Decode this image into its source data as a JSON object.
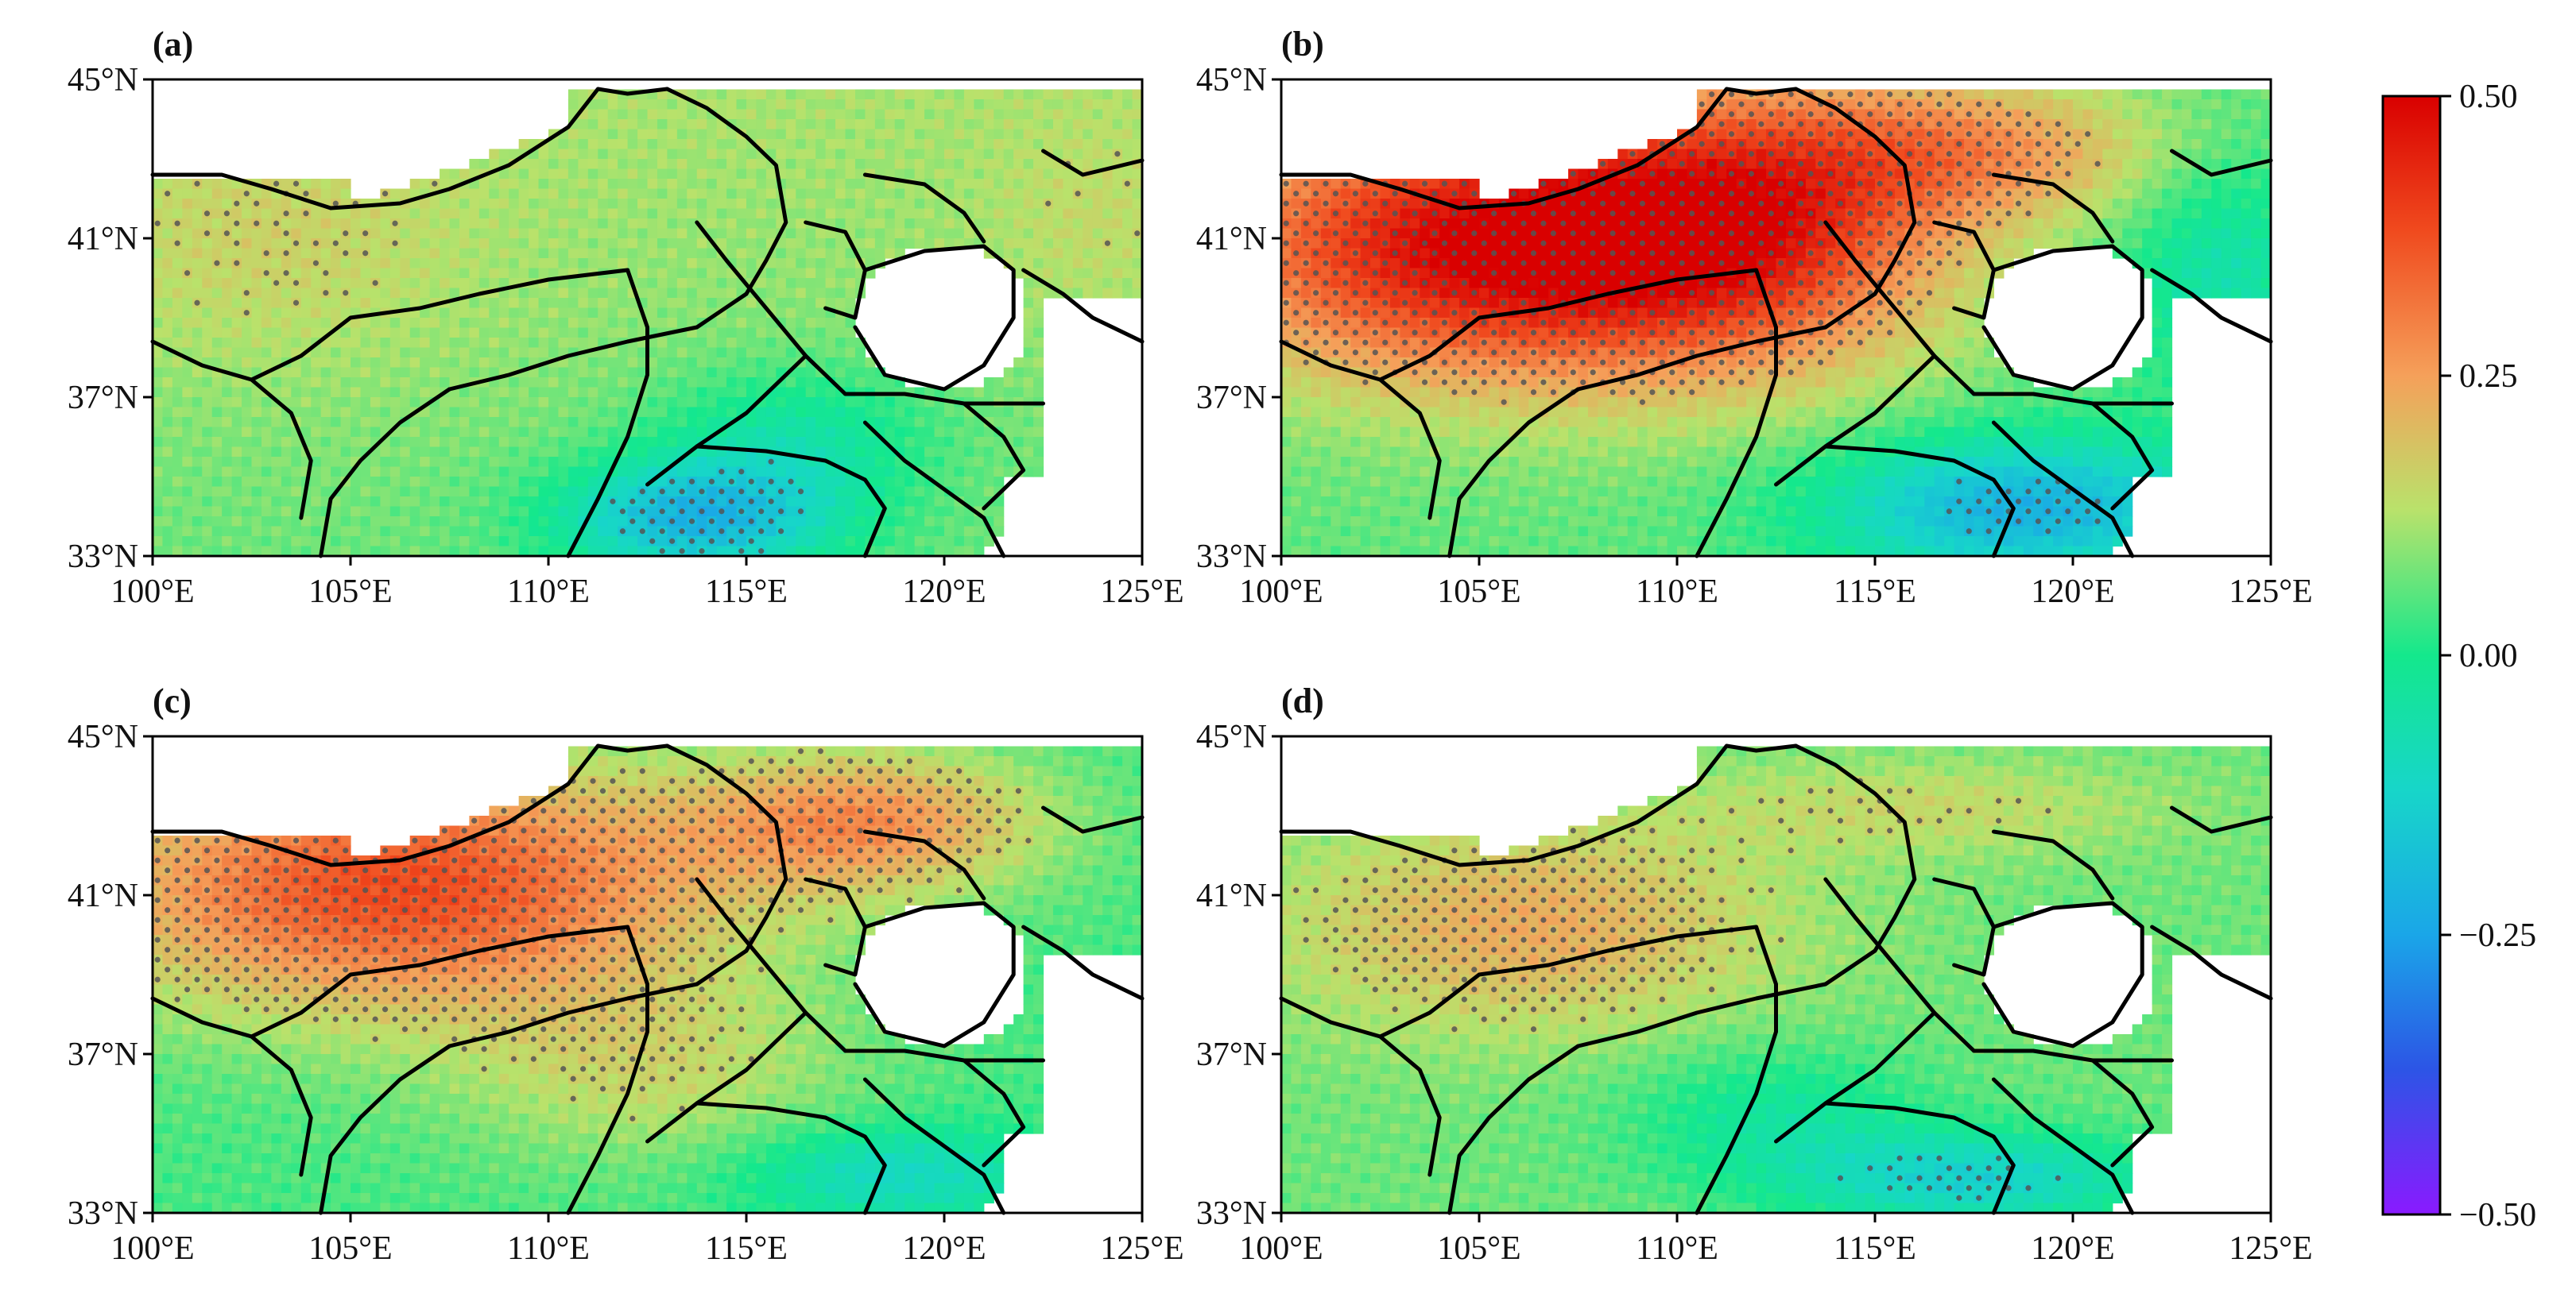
{
  "panels": [
    {
      "id": "a",
      "label": "(a)",
      "pattern": "a"
    },
    {
      "id": "b",
      "label": "(b)",
      "pattern": "b"
    },
    {
      "id": "c",
      "label": "(c)",
      "pattern": "c"
    },
    {
      "id": "d",
      "label": "(d)",
      "pattern": "d"
    }
  ],
  "axes": {
    "x_ticks": [
      "100°E",
      "105°E",
      "110°E",
      "115°E",
      "120°E",
      "125°E"
    ],
    "y_ticks": [
      "45°N",
      "41°N",
      "37°N",
      "33°N"
    ],
    "lon_range": [
      100,
      125
    ],
    "lat_range": [
      33,
      45
    ]
  },
  "colorbar": {
    "ticks": [
      "0.50",
      "0.25",
      "0.00",
      "−0.25",
      "−0.50"
    ],
    "range": [
      -0.5,
      0.5
    ]
  },
  "colors": {
    "high": "#d81a10",
    "mid_high": "#f0a040",
    "neutral": "#2ee39a",
    "low": "#1a8fe8",
    "lowest": "#7a1aff",
    "stipple": "#555555",
    "boundary": "#000000"
  }
}
